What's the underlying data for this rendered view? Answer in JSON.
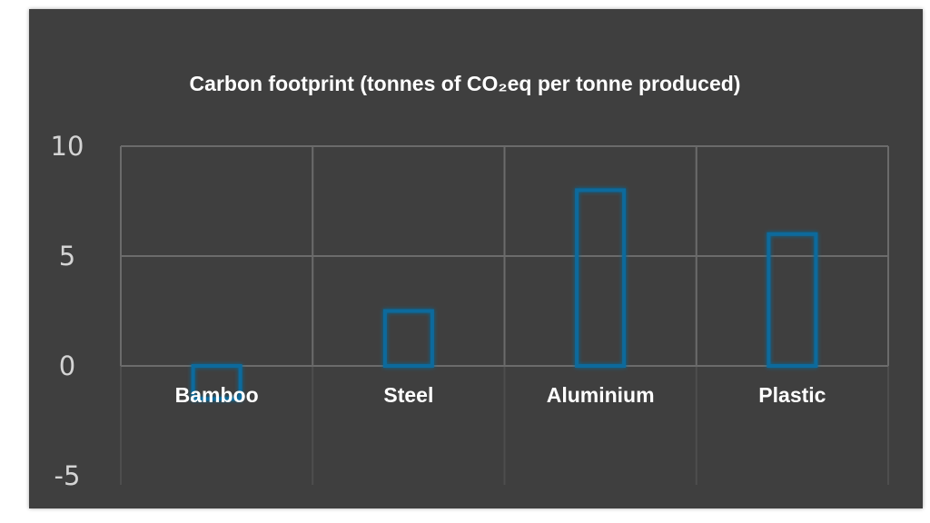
{
  "chart_data": {
    "type": "bar",
    "title": "Carbon footprint (tonnes of CO₂eq per tonne produced)",
    "categories": [
      "Bamboo",
      "Steel",
      "Aluminium",
      "Plastic"
    ],
    "values": [
      -1.5,
      2.5,
      8,
      6
    ],
    "ylim": [
      -5,
      10
    ],
    "yticks": [
      10,
      5,
      0,
      -5
    ],
    "xlabel": "",
    "ylabel": "",
    "grid": true,
    "bar_color": "#0f6a9c",
    "background": "#3f3f3f"
  }
}
